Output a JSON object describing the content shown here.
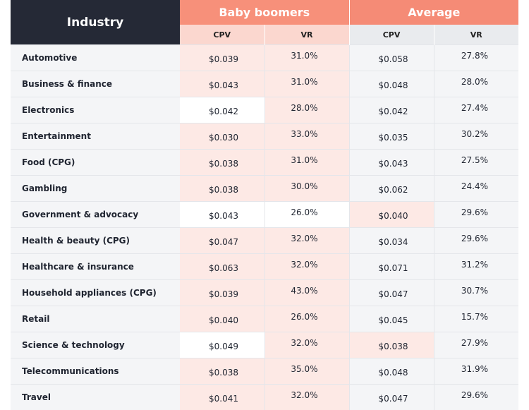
{
  "chart_data": {
    "type": "table",
    "header": {
      "industry": "Industry",
      "group_a": "Baby boomers",
      "group_b": "Average",
      "cpv": "CPV",
      "vr": "VR"
    },
    "rows": [
      {
        "industry": "Automotive",
        "bb_cpv": "$0.039",
        "bb_vr": "31.0%",
        "avg_cpv": "$0.058",
        "avg_vr": "27.8%"
      },
      {
        "industry": "Business & finance",
        "bb_cpv": "$0.043",
        "bb_vr": "31.0%",
        "avg_cpv": "$0.048",
        "avg_vr": "28.0%"
      },
      {
        "industry": "Electronics",
        "bb_cpv": "$0.042",
        "bb_vr": "28.0%",
        "avg_cpv": "$0.042",
        "avg_vr": "27.4%"
      },
      {
        "industry": "Entertainment",
        "bb_cpv": "$0.030",
        "bb_vr": "33.0%",
        "avg_cpv": "$0.035",
        "avg_vr": "30.2%"
      },
      {
        "industry": "Food (CPG)",
        "bb_cpv": "$0.038",
        "bb_vr": "31.0%",
        "avg_cpv": "$0.043",
        "avg_vr": "27.5%"
      },
      {
        "industry": "Gambling",
        "bb_cpv": "$0.038",
        "bb_vr": "30.0%",
        "avg_cpv": "$0.062",
        "avg_vr": "24.4%"
      },
      {
        "industry": "Government & advocacy",
        "bb_cpv": "$0.043",
        "bb_vr": "26.0%",
        "avg_cpv": "$0.040",
        "avg_vr": "29.6%"
      },
      {
        "industry": "Health & beauty (CPG)",
        "bb_cpv": "$0.047",
        "bb_vr": "32.0%",
        "avg_cpv": "$0.034",
        "avg_vr": "29.6%"
      },
      {
        "industry": "Healthcare & insurance",
        "bb_cpv": "$0.063",
        "bb_vr": "32.0%",
        "avg_cpv": "$0.071",
        "avg_vr": "31.2%"
      },
      {
        "industry": "Household appliances (CPG)",
        "bb_cpv": "$0.039",
        "bb_vr": "43.0%",
        "avg_cpv": "$0.047",
        "avg_vr": "30.7%"
      },
      {
        "industry": "Retail",
        "bb_cpv": "$0.040",
        "bb_vr": "26.0%",
        "avg_cpv": "$0.045",
        "avg_vr": "15.7%"
      },
      {
        "industry": "Science & technology",
        "bb_cpv": "$0.049",
        "bb_vr": "32.0%",
        "avg_cpv": "$0.038",
        "avg_vr": "27.9%"
      },
      {
        "industry": "Telecommunications",
        "bb_cpv": "$0.038",
        "bb_vr": "35.0%",
        "avg_cpv": "$0.048",
        "avg_vr": "31.9%"
      },
      {
        "industry": "Travel",
        "bb_cpv": "$0.041",
        "bb_vr": "32.0%",
        "avg_cpv": "$0.047",
        "avg_vr": "29.6%"
      }
    ],
    "highlights": {
      "bb_cpv_white_rows": [
        2,
        6,
        11
      ],
      "bb_vr_white_rows": [
        6
      ],
      "avg_cpv_pink_rows": [
        6,
        11
      ]
    }
  },
  "colors": {
    "industry_header": "#252936",
    "accent": "#f7907a",
    "pink_cell": "#fde9e5",
    "gray_cell": "#f4f5f7"
  }
}
